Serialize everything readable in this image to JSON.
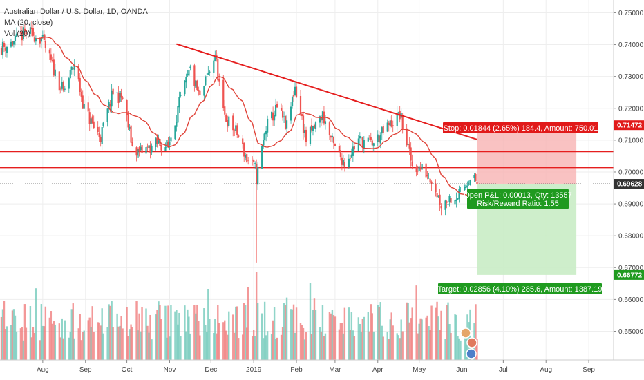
{
  "legend": {
    "symbol_line": "Australian Dollar / U.S. Dollar, 1D, OANDA",
    "ma_line": "MA (20, close)",
    "vol_line": "Vol (20)"
  },
  "colors": {
    "up": "#6bc7b7",
    "down": "#ef7676",
    "ma": "#e0443a",
    "trend": "#e51e1e",
    "stop_zone": "#f7b3b3",
    "target_zone": "#c9ecc5",
    "stop_box": "#e11a1a",
    "target_box": "#1f9a1f",
    "pnl_box": "#1f9a1f",
    "price_badge": "#333333"
  },
  "price_badges": {
    "stop": "0.71472",
    "current": "0.69628",
    "target": "0.66772"
  },
  "position": {
    "stop_label": "Stop: 0.01844 (2.65%) 184.4, Amount: 750.01",
    "pnl_line1": "Open P&L: 0.00013, Qty: 13557",
    "pnl_line2": "Risk/Reward Ratio: 1.55",
    "target_label": "Target: 0.02856 (4.10%) 285.6, Amount: 1387.19",
    "entry": 0.6963,
    "stop": 0.7147,
    "target": 0.6677
  },
  "chart_data": {
    "type": "candlestick",
    "y_axis": {
      "ticks": [
        "0.75000",
        "0.74000",
        "0.73000",
        "0.72000",
        "0.71000",
        "0.70000",
        "0.69000",
        "0.68000",
        "0.67000",
        "0.66000",
        "0.65000"
      ],
      "range": [
        0.641,
        0.754
      ]
    },
    "x_axis": {
      "ticks": [
        "Aug",
        "Sep",
        "Oct",
        "Nov",
        "Dec",
        "2019",
        "Feb",
        "Mar",
        "Apr",
        "May",
        "Jun",
        "Jul",
        "Aug",
        "Sep"
      ]
    },
    "horizontal_lines": [
      0.7064,
      0.7014
    ],
    "trendline": {
      "from": [
        "2018-11-06",
        0.7402
      ],
      "to": [
        "2019-06-12",
        0.7102
      ]
    },
    "ma_period": 20,
    "price_path": [
      [
        "2018-07-02",
        0.739
      ],
      [
        "2018-07-12",
        0.741
      ],
      [
        "2018-07-20",
        0.744
      ],
      [
        "2018-07-31",
        0.742
      ],
      [
        "2018-08-10",
        0.731
      ],
      [
        "2018-08-16",
        0.725
      ],
      [
        "2018-08-24",
        0.734
      ],
      [
        "2018-08-31",
        0.72
      ],
      [
        "2018-09-07",
        0.714
      ],
      [
        "2018-09-12",
        0.711
      ],
      [
        "2018-09-21",
        0.725
      ],
      [
        "2018-09-28",
        0.723
      ],
      [
        "2018-10-05",
        0.708
      ],
      [
        "2018-10-10",
        0.706
      ],
      [
        "2018-10-24",
        0.709
      ],
      [
        "2018-10-31",
        0.708
      ],
      [
        "2018-11-09",
        0.723
      ],
      [
        "2018-11-16",
        0.732
      ],
      [
        "2018-11-23",
        0.723
      ],
      [
        "2018-12-04",
        0.737
      ],
      [
        "2018-12-10",
        0.718
      ],
      [
        "2018-12-20",
        0.712
      ],
      [
        "2018-12-27",
        0.704
      ],
      [
        "2019-01-02",
        0.701
      ],
      [
        "2019-01-03",
        0.698
      ],
      [
        "2019-01-10",
        0.714
      ],
      [
        "2019-01-18",
        0.72
      ],
      [
        "2019-01-25",
        0.714
      ],
      [
        "2019-01-31",
        0.727
      ],
      [
        "2019-02-08",
        0.71
      ],
      [
        "2019-02-20",
        0.718
      ],
      [
        "2019-02-28",
        0.708
      ],
      [
        "2019-03-08",
        0.703
      ],
      [
        "2019-03-18",
        0.71
      ],
      [
        "2019-03-29",
        0.709
      ],
      [
        "2019-04-08",
        0.714
      ],
      [
        "2019-04-17",
        0.718
      ],
      [
        "2019-04-26",
        0.702
      ],
      [
        "2019-05-03",
        0.701
      ],
      [
        "2019-05-10",
        0.698
      ],
      [
        "2019-05-17",
        0.69
      ],
      [
        "2019-05-24",
        0.692
      ],
      [
        "2019-05-31",
        0.693
      ],
      [
        "2019-06-07",
        0.699
      ],
      [
        "2019-06-12",
        0.6963
      ]
    ]
  }
}
